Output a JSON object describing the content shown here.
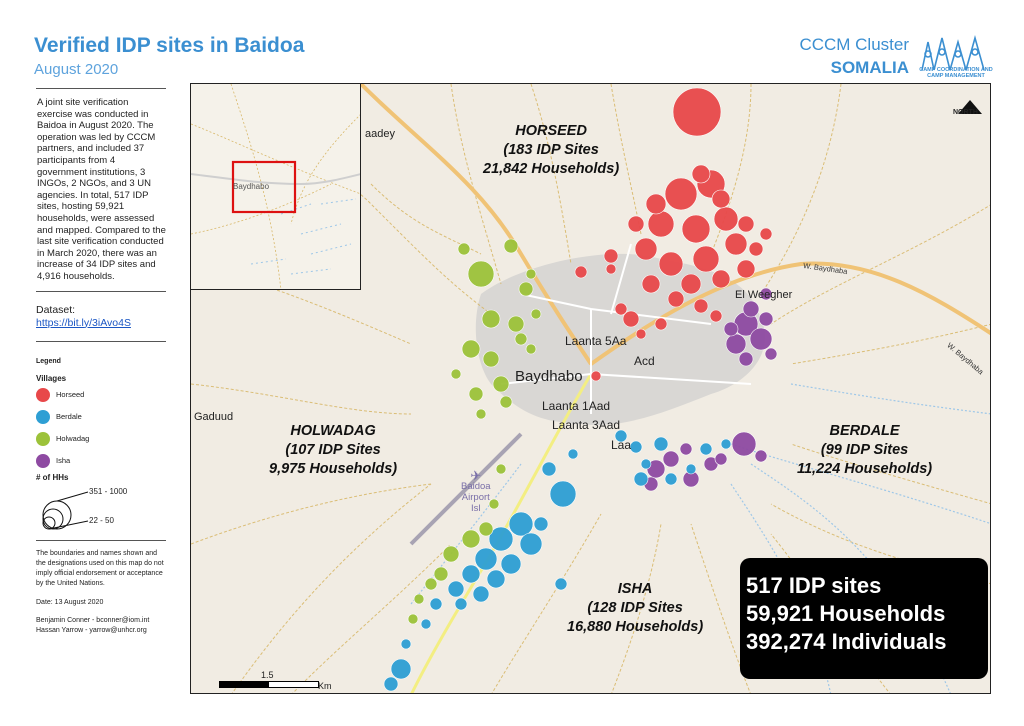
{
  "header": {
    "title": "Verified IDP sites in Baidoa",
    "subtitle": "August 2020",
    "cluster": "CCCM Cluster",
    "country": "SOMALIA",
    "logo_text": "CAMP COORDINATION AND CAMP MANAGEMENT"
  },
  "sidebar": {
    "description": "A joint site verification exercise was conducted in Baidoa in August 2020. The operation was led by CCCM partners, and included 37 participants from 4 government institutions, 3 INGOs, 2 NGOs, and 3 UN agencies. In total, 517 IDP sites, hosting 59,921 households, were assessed and mapped. Compared to the last site verification conducted in March 2020, there was an increase of 34 IDP sites and 4,916 households.",
    "dataset_label": "Dataset:",
    "dataset_link": "https://bit.ly/3iAvo4S",
    "legend_title": "Legend",
    "villages_title": "Villages",
    "villages": [
      {
        "label": "Horseed",
        "color": "#e8484a"
      },
      {
        "label": "Berdale",
        "color": "#2e9fd4"
      },
      {
        "label": "Holwadag",
        "color": "#9cc23a"
      },
      {
        "label": "Isha",
        "color": "#8e4aa2"
      }
    ],
    "hh_title": "# of HHs",
    "hh_max": "351 - 1000",
    "hh_min": "22 - 50",
    "disclaimer": "The boundaries and names shown and the designations used on this map do not imply official endorsement or acceptance by the United Nations.",
    "date": "Date: 13 August 2020",
    "credit1": "Benjamin Conner - bconner@iom.int",
    "credit2": "Hassan Yarrow - yarrow@unhcr.org"
  },
  "map": {
    "districts": {
      "horseed": {
        "name": "HORSEED",
        "sites": "(183 IDP Sites",
        "households": "21,842 Households)"
      },
      "holwadag": {
        "name": "HOLWADAG",
        "sites": "(107 IDP Sites",
        "households": "9,975 Households)"
      },
      "berdale": {
        "name": "BERDALE",
        "sites": "(99 IDP Sites",
        "households": "11,224 Households)"
      },
      "isha": {
        "name": "ISHA",
        "sites": "(128 IDP Sites",
        "households": "16,880 Households)"
      }
    },
    "places": {
      "baydhabo": "Baydhabo",
      "laanta5aa": "Laanta 5Aa",
      "acd": "Acd",
      "laanta1aad": "Laanta 1Aad",
      "laanta3aad": "Laanta 3Aad",
      "laanta5": "Laa",
      "elwegher": "El Weegher",
      "gaduud": "Gaduud",
      "aadey": "aadey",
      "airport": "Baidoa",
      "airport2": "Airport",
      "airport3": "Isl",
      "inset_town": "Baydhabo"
    },
    "roads": {
      "road1": "W. Baydhaba",
      "road2": "W. Baydhaba"
    },
    "north_label": "NORTH",
    "scale_value": "1.5",
    "scale_unit": "Km"
  },
  "summary": {
    "sites": "517 IDP sites",
    "households": "59,921 Households",
    "individuals": "392,274 Individuals"
  }
}
